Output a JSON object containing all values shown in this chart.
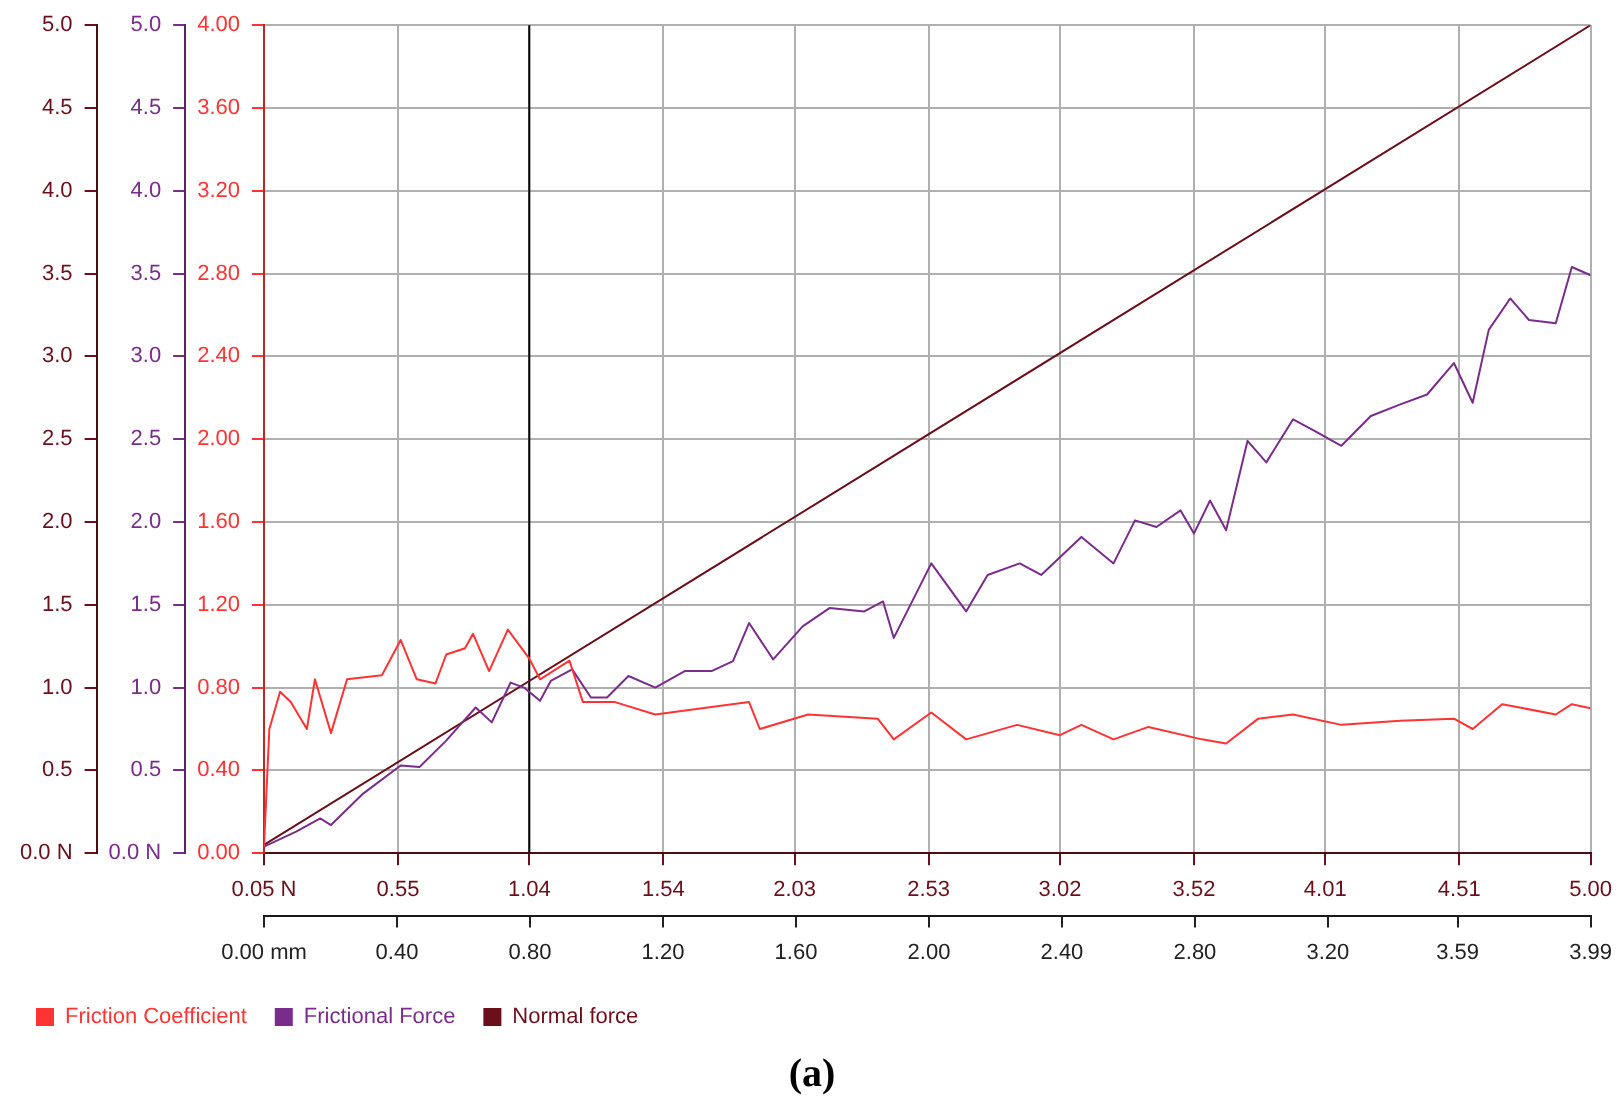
{
  "chart_data": {
    "type": "line",
    "annotations": [
      "(a)"
    ],
    "legend": "bottom left",
    "grid": true,
    "xlim": [
      0.05,
      5.0
    ],
    "xticks": [
      {
        "value": 0.05,
        "label": "0.05 N"
      },
      0.55,
      1.04,
      1.54,
      2.03,
      2.53,
      3.02,
      3.52,
      4.01,
      4.51,
      {
        "value": 5.0,
        "label": "5.00"
      }
    ],
    "x2lim": [
      0.0,
      3.99
    ],
    "x2ticks": [
      {
        "value": 0.0,
        "label": "0.00 mm"
      },
      {
        "value": 0.4,
        "label": "0.40"
      },
      {
        "value": 0.8,
        "label": "0.80"
      },
      {
        "value": 1.2,
        "label": "1.20"
      },
      {
        "value": 1.6,
        "label": "1.60"
      },
      {
        "value": 2.0,
        "label": "2.00"
      },
      {
        "value": 2.4,
        "label": "2.40"
      },
      {
        "value": 2.8,
        "label": "2.80"
      },
      {
        "value": 3.2,
        "label": "3.20"
      },
      3.59,
      3.99
    ],
    "ylim": [
      0,
      5
    ],
    "yticks": [
      {
        "value": 0,
        "label": "0.0 N"
      },
      0.5,
      {
        "value": 1,
        "label": "1.0"
      },
      1.5,
      {
        "value": 2,
        "label": "2.0"
      },
      2.5,
      {
        "value": 3,
        "label": "3.0"
      },
      3.5,
      {
        "value": 4,
        "label": "4.0"
      },
      4.5,
      {
        "value": 5,
        "label": "5.0"
      }
    ],
    "y2lim": [
      0,
      5
    ],
    "y2ticks": [
      {
        "value": 0,
        "label": "0.0 N"
      },
      0.5,
      {
        "value": 1,
        "label": "1.0"
      },
      1.5,
      {
        "value": 2,
        "label": "2.0"
      },
      2.5,
      {
        "value": 3,
        "label": "3.0"
      },
      3.5,
      {
        "value": 4,
        "label": "4.0"
      },
      4.5,
      {
        "value": 5,
        "label": "5.0"
      }
    ],
    "y3lim": [
      0,
      4
    ],
    "y3ticks": [
      {
        "value": 0,
        "label": "0.00"
      },
      {
        "value": 0.4,
        "label": "0.40"
      },
      {
        "value": 0.8,
        "label": "0.80"
      },
      {
        "value": 1.2,
        "label": "1.20"
      },
      {
        "value": 1.6,
        "label": "1.60"
      },
      {
        "value": 2.0,
        "label": "2.00"
      },
      {
        "value": 2.4,
        "label": "2.40"
      },
      {
        "value": 2.8,
        "label": "2.80"
      },
      {
        "value": 3.2,
        "label": "3.20"
      },
      {
        "value": 3.6,
        "label": "3.60"
      },
      {
        "value": 4.0,
        "label": "4.00"
      }
    ],
    "ref_lines": [
      {
        "axis": "x",
        "value": 1.04,
        "color": "#000000"
      }
    ],
    "series": [
      {
        "name": "Friction Coefficient",
        "color": "#ff3333",
        "axis": "y3",
        "x": [
          0.05,
          0.07,
          0.11,
          0.15,
          0.21,
          0.24,
          0.3,
          0.36,
          0.49,
          0.56,
          0.62,
          0.69,
          0.73,
          0.8,
          0.83,
          0.89,
          0.96,
          1.04,
          1.08,
          1.19,
          1.24,
          1.36,
          1.51,
          1.86,
          1.9,
          2.08,
          2.34,
          2.4,
          2.54,
          2.67,
          2.86,
          3.02,
          3.1,
          3.22,
          3.35,
          3.55,
          3.64,
          3.76,
          3.89,
          4.07,
          4.29,
          4.49,
          4.56,
          4.67,
          4.75,
          4.87,
          4.93,
          5.0
        ],
        "values": [
          0.03,
          0.6,
          0.78,
          0.73,
          0.6,
          0.84,
          0.58,
          0.84,
          0.86,
          1.03,
          0.84,
          0.82,
          0.96,
          0.99,
          1.06,
          0.88,
          1.08,
          0.94,
          0.84,
          0.93,
          0.73,
          0.73,
          0.67,
          0.73,
          0.6,
          0.67,
          0.65,
          0.55,
          0.68,
          0.55,
          0.62,
          0.57,
          0.62,
          0.55,
          0.61,
          0.55,
          0.53,
          0.65,
          0.67,
          0.62,
          0.64,
          0.65,
          0.6,
          0.72,
          0.7,
          0.67,
          0.72,
          0.7
        ]
      },
      {
        "name": "Frictional Force",
        "color": "#7a2c8c",
        "axis": "y2",
        "x": [
          0.05,
          0.17,
          0.26,
          0.3,
          0.42,
          0.56,
          0.63,
          0.73,
          0.79,
          0.84,
          0.9,
          0.97,
          1.02,
          1.08,
          1.12,
          1.2,
          1.27,
          1.33,
          1.41,
          1.51,
          1.62,
          1.72,
          1.8,
          1.86,
          1.95,
          2.06,
          2.16,
          2.29,
          2.36,
          2.4,
          2.54,
          2.67,
          2.75,
          2.87,
          2.95,
          3.1,
          3.22,
          3.3,
          3.38,
          3.47,
          3.52,
          3.58,
          3.64,
          3.72,
          3.79,
          3.89,
          3.97,
          4.07,
          4.18,
          4.29,
          4.39,
          4.49,
          4.56,
          4.62,
          4.7,
          4.77,
          4.87,
          4.93,
          5.0
        ],
        "values": [
          0.04,
          0.13,
          0.21,
          0.17,
          0.36,
          0.53,
          0.52,
          0.68,
          0.79,
          0.88,
          0.79,
          1.03,
          1.0,
          0.92,
          1.04,
          1.11,
          0.94,
          0.94,
          1.07,
          1.0,
          1.1,
          1.1,
          1.16,
          1.39,
          1.17,
          1.37,
          1.48,
          1.46,
          1.52,
          1.3,
          1.75,
          1.46,
          1.68,
          1.75,
          1.68,
          1.91,
          1.75,
          2.01,
          1.97,
          2.07,
          1.93,
          2.13,
          1.95,
          2.49,
          2.36,
          2.62,
          2.55,
          2.46,
          2.64,
          2.71,
          2.77,
          2.96,
          2.72,
          3.16,
          3.35,
          3.22,
          3.2,
          3.54,
          3.49
        ]
      },
      {
        "name": "Normal force",
        "color": "#6b0f1a",
        "x": [
          0.05,
          5.0
        ],
        "values": [
          0.05,
          5.0
        ]
      }
    ]
  }
}
